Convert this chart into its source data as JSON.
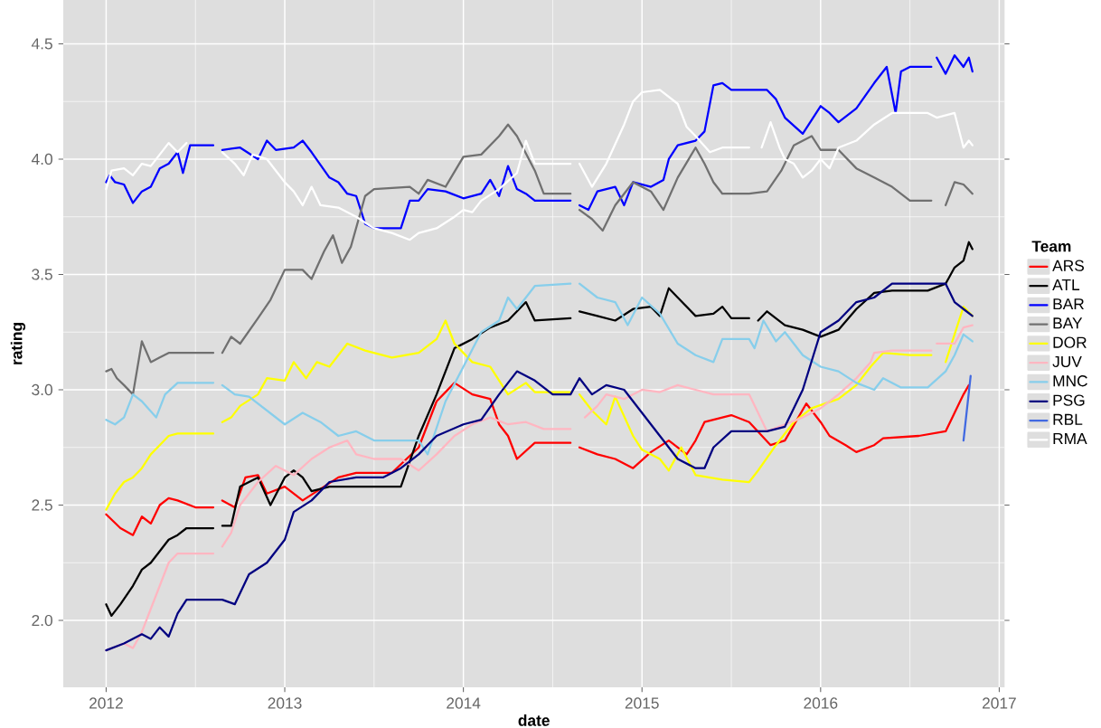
{
  "chart_data": {
    "type": "line",
    "xlabel": "date",
    "ylabel": "rating",
    "legend_title": "Team",
    "legend": "right",
    "grid": true,
    "line_style": "solid",
    "xlim": [
      2011.76,
      2017.03
    ],
    "ylim": [
      1.71,
      4.69
    ],
    "xticks": [
      2012,
      2013,
      2014,
      2015,
      2016,
      2017
    ],
    "yticks": [
      {
        "value": 2,
        "label": "2.0"
      },
      {
        "value": 2.5,
        "label": "2.5"
      },
      {
        "value": 3,
        "label": "3.0"
      },
      {
        "value": 3.5,
        "label": "3.5"
      },
      {
        "value": 4,
        "label": "4.0"
      },
      {
        "value": 4.5,
        "label": "4.5"
      }
    ],
    "series": [
      {
        "name": "ARS",
        "color": "#ff0000",
        "x": [
          2012.0,
          2012.08,
          2012.15,
          2012.2,
          2012.25,
          2012.3,
          2012.35,
          2012.4,
          2012.5,
          2012.6,
          2012.62,
          2012.65,
          2012.72,
          2012.78,
          2012.85,
          2012.9,
          2013.0,
          2013.1,
          2013.2,
          2013.3,
          2013.4,
          2013.6,
          2013.75,
          2013.85,
          2013.95,
          2014.05,
          2014.15,
          2014.2,
          2014.25,
          2014.3,
          2014.4,
          2014.6,
          2014.62,
          2014.65,
          2014.75,
          2014.85,
          2014.95,
          2015.05,
          2015.15,
          2015.25,
          2015.3,
          2015.35,
          2015.45,
          2015.5,
          2015.6,
          2015.72,
          2015.8,
          2015.92,
          2016.0,
          2016.05,
          2016.14,
          2016.2,
          2016.3,
          2016.35,
          2016.55,
          2016.7,
          2016.75,
          2016.8,
          2016.83
        ],
        "values": [
          2.46,
          2.4,
          2.37,
          2.45,
          2.42,
          2.5,
          2.53,
          2.52,
          2.49,
          2.49,
          null,
          2.52,
          2.49,
          2.62,
          2.63,
          2.55,
          2.58,
          2.52,
          2.57,
          2.62,
          2.64,
          2.64,
          2.75,
          2.95,
          3.03,
          2.98,
          2.96,
          2.85,
          2.8,
          2.7,
          2.77,
          2.77,
          null,
          2.75,
          2.72,
          2.7,
          2.66,
          2.73,
          2.78,
          2.72,
          2.78,
          2.86,
          2.88,
          2.89,
          2.86,
          2.76,
          2.78,
          2.94,
          2.86,
          2.8,
          2.76,
          2.73,
          2.76,
          2.79,
          2.8,
          2.82,
          2.9,
          2.98,
          3.02
        ]
      },
      {
        "name": "ATL",
        "color": "#000000",
        "x": [
          2012.0,
          2012.03,
          2012.08,
          2012.15,
          2012.2,
          2012.25,
          2012.3,
          2012.35,
          2012.4,
          2012.45,
          2012.6,
          2012.62,
          2012.65,
          2012.7,
          2012.75,
          2012.85,
          2012.92,
          2013.0,
          2013.05,
          2013.1,
          2013.15,
          2013.25,
          2013.5,
          2013.65,
          2013.75,
          2013.85,
          2013.95,
          2014.05,
          2014.15,
          2014.25,
          2014.35,
          2014.4,
          2014.6,
          2014.62,
          2014.65,
          2014.75,
          2014.85,
          2014.95,
          2015.05,
          2015.1,
          2015.15,
          2015.2,
          2015.3,
          2015.4,
          2015.45,
          2015.5,
          2015.6,
          2015.62,
          2015.65,
          2015.7,
          2015.8,
          2015.9,
          2016.0,
          2016.1,
          2016.2,
          2016.3,
          2016.4,
          2016.6,
          2016.7,
          2016.75,
          2016.8,
          2016.83,
          2016.85
        ],
        "values": [
          2.07,
          2.02,
          2.07,
          2.15,
          2.22,
          2.25,
          2.3,
          2.35,
          2.37,
          2.4,
          2.4,
          null,
          2.41,
          2.41,
          2.58,
          2.62,
          2.5,
          2.62,
          2.65,
          2.62,
          2.56,
          2.58,
          2.58,
          2.58,
          2.8,
          2.98,
          3.18,
          3.22,
          3.27,
          3.3,
          3.38,
          3.3,
          3.31,
          null,
          3.34,
          3.32,
          3.3,
          3.35,
          3.36,
          3.32,
          3.44,
          3.4,
          3.32,
          3.33,
          3.36,
          3.31,
          3.31,
          null,
          3.3,
          3.34,
          3.28,
          3.26,
          3.23,
          3.26,
          3.35,
          3.42,
          3.43,
          3.43,
          3.46,
          3.53,
          3.56,
          3.64,
          3.61
        ]
      },
      {
        "name": "BAR",
        "color": "#0000ff",
        "x": [
          2012.0,
          2012.02,
          2012.05,
          2012.1,
          2012.15,
          2012.2,
          2012.25,
          2012.3,
          2012.35,
          2012.4,
          2012.43,
          2012.47,
          2012.6,
          2012.62,
          2012.65,
          2012.75,
          2012.85,
          2012.9,
          2012.95,
          2013.05,
          2013.1,
          2013.15,
          2013.25,
          2013.3,
          2013.35,
          2013.4,
          2013.45,
          2013.5,
          2013.65,
          2013.7,
          2013.75,
          2013.8,
          2013.9,
          2014.0,
          2014.1,
          2014.15,
          2014.2,
          2014.25,
          2014.3,
          2014.35,
          2014.4,
          2014.6,
          2014.62,
          2014.65,
          2014.7,
          2014.75,
          2014.85,
          2014.9,
          2014.95,
          2015.05,
          2015.12,
          2015.15,
          2015.2,
          2015.3,
          2015.35,
          2015.4,
          2015.45,
          2015.5,
          2015.7,
          2015.75,
          2015.8,
          2015.9,
          2016.0,
          2016.05,
          2016.1,
          2016.2,
          2016.3,
          2016.37,
          2016.42,
          2016.45,
          2016.5,
          2016.62,
          2016.63,
          2016.65,
          2016.7,
          2016.75,
          2016.8,
          2016.83,
          2016.85
        ],
        "values": [
          3.9,
          3.93,
          3.9,
          3.89,
          3.81,
          3.86,
          3.88,
          3.96,
          3.98,
          4.03,
          3.94,
          4.06,
          4.06,
          null,
          4.04,
          4.05,
          4.0,
          4.08,
          4.04,
          4.05,
          4.08,
          4.03,
          3.92,
          3.9,
          3.85,
          3.84,
          3.72,
          3.7,
          3.7,
          3.82,
          3.82,
          3.87,
          3.86,
          3.83,
          3.85,
          3.91,
          3.84,
          3.97,
          3.87,
          3.85,
          3.82,
          3.82,
          null,
          3.8,
          3.78,
          3.86,
          3.88,
          3.8,
          3.9,
          3.88,
          3.91,
          4.0,
          4.06,
          4.08,
          4.12,
          4.32,
          4.33,
          4.3,
          4.3,
          4.26,
          4.18,
          4.11,
          4.23,
          4.2,
          4.16,
          4.22,
          4.33,
          4.4,
          4.2,
          4.38,
          4.4,
          4.4,
          null,
          4.44,
          4.37,
          4.45,
          4.4,
          4.44,
          4.38
        ]
      },
      {
        "name": "BAY",
        "color": "#707070",
        "x": [
          2012.0,
          2012.03,
          2012.06,
          2012.1,
          2012.15,
          2012.2,
          2012.25,
          2012.3,
          2012.35,
          2012.6,
          2012.62,
          2012.65,
          2012.7,
          2012.75,
          2012.85,
          2012.92,
          2013.0,
          2013.1,
          2013.15,
          2013.22,
          2013.27,
          2013.32,
          2013.37,
          2013.45,
          2013.5,
          2013.7,
          2013.75,
          2013.8,
          2013.9,
          2014.0,
          2014.1,
          2014.2,
          2014.25,
          2014.3,
          2014.4,
          2014.45,
          2014.6,
          2014.62,
          2014.65,
          2014.72,
          2014.78,
          2014.85,
          2014.95,
          2015.05,
          2015.12,
          2015.2,
          2015.3,
          2015.35,
          2015.4,
          2015.45,
          2015.6,
          2015.7,
          2015.78,
          2015.85,
          2015.95,
          2016.0,
          2016.1,
          2016.2,
          2016.3,
          2016.4,
          2016.5,
          2016.62,
          2016.66,
          2016.7,
          2016.75,
          2016.8,
          2016.85
        ],
        "values": [
          3.08,
          3.09,
          3.05,
          3.02,
          2.98,
          3.21,
          3.12,
          3.14,
          3.16,
          3.16,
          null,
          3.16,
          3.23,
          3.2,
          3.31,
          3.39,
          3.52,
          3.52,
          3.48,
          3.6,
          3.67,
          3.55,
          3.62,
          3.84,
          3.87,
          3.88,
          3.85,
          3.91,
          3.88,
          4.01,
          4.02,
          4.1,
          4.15,
          4.1,
          3.95,
          3.85,
          3.85,
          null,
          3.78,
          3.74,
          3.69,
          3.8,
          3.9,
          3.86,
          3.78,
          3.92,
          4.05,
          3.98,
          3.9,
          3.85,
          3.85,
          3.86,
          3.95,
          4.06,
          4.1,
          4.04,
          4.04,
          3.96,
          3.92,
          3.88,
          3.82,
          3.82,
          null,
          3.8,
          3.9,
          3.89,
          3.85
        ]
      },
      {
        "name": "DOR",
        "color": "#ffff00",
        "x": [
          2012.0,
          2012.05,
          2012.1,
          2012.15,
          2012.2,
          2012.25,
          2012.3,
          2012.35,
          2012.4,
          2012.6,
          2012.62,
          2012.65,
          2012.7,
          2012.75,
          2012.85,
          2012.9,
          2013.0,
          2013.05,
          2013.12,
          2013.18,
          2013.25,
          2013.35,
          2013.45,
          2013.6,
          2013.75,
          2013.85,
          2013.9,
          2013.95,
          2014.05,
          2014.15,
          2014.25,
          2014.35,
          2014.4,
          2014.6,
          2014.62,
          2014.65,
          2014.72,
          2014.8,
          2014.85,
          2014.95,
          2015.0,
          2015.1,
          2015.15,
          2015.22,
          2015.3,
          2015.45,
          2015.6,
          2015.65,
          2015.75,
          2015.85,
          2015.95,
          2016.1,
          2016.2,
          2016.28,
          2016.35,
          2016.5,
          2016.62,
          2016.66,
          2016.7,
          2016.75,
          2016.8,
          2016.85
        ],
        "values": [
          2.48,
          2.55,
          2.6,
          2.62,
          2.66,
          2.72,
          2.76,
          2.8,
          2.81,
          2.81,
          null,
          2.86,
          2.88,
          2.93,
          2.98,
          3.05,
          3.04,
          3.12,
          3.05,
          3.12,
          3.1,
          3.2,
          3.17,
          3.14,
          3.16,
          3.22,
          3.3,
          3.2,
          3.12,
          3.1,
          2.98,
          3.03,
          2.99,
          2.99,
          null,
          2.98,
          2.91,
          2.85,
          2.97,
          2.8,
          2.74,
          2.7,
          2.65,
          2.75,
          2.63,
          2.61,
          2.6,
          2.65,
          2.76,
          2.86,
          2.92,
          2.96,
          3.02,
          3.1,
          3.16,
          3.15,
          3.15,
          null,
          3.12,
          3.24,
          3.36,
          3.32
        ]
      },
      {
        "name": "JUV",
        "color": "#ffb6c1",
        "x": [
          2012.0,
          2012.1,
          2012.15,
          2012.2,
          2012.25,
          2012.3,
          2012.35,
          2012.4,
          2012.6,
          2012.62,
          2012.65,
          2012.7,
          2012.75,
          2012.85,
          2012.95,
          2013.05,
          2013.15,
          2013.25,
          2013.35,
          2013.4,
          2013.5,
          2013.65,
          2013.75,
          2013.85,
          2013.95,
          2014.05,
          2014.15,
          2014.25,
          2014.35,
          2014.45,
          2014.6,
          2014.64,
          2014.68,
          2014.75,
          2014.8,
          2014.9,
          2015.0,
          2015.1,
          2015.2,
          2015.3,
          2015.4,
          2015.6,
          2015.65,
          2015.7,
          2015.8,
          2015.9,
          2016.0,
          2016.1,
          2016.2,
          2016.28,
          2016.3,
          2016.4,
          2016.62,
          2016.63,
          2016.65,
          2016.75,
          2016.8,
          2016.85
        ],
        "values": [
          1.87,
          1.9,
          1.88,
          1.95,
          2.05,
          2.15,
          2.25,
          2.29,
          2.29,
          null,
          2.32,
          2.38,
          2.5,
          2.6,
          2.67,
          2.63,
          2.7,
          2.75,
          2.78,
          2.72,
          2.7,
          2.7,
          2.65,
          2.72,
          2.8,
          2.85,
          2.88,
          2.85,
          2.86,
          2.83,
          2.83,
          null,
          2.88,
          2.93,
          2.98,
          2.96,
          3.0,
          2.99,
          3.02,
          3.0,
          2.98,
          2.98,
          2.9,
          2.82,
          2.85,
          2.88,
          2.92,
          2.98,
          3.05,
          3.12,
          3.16,
          3.17,
          3.17,
          null,
          3.2,
          3.2,
          3.27,
          3.28
        ]
      },
      {
        "name": "MNC",
        "color": "#87ceeb",
        "x": [
          2012.0,
          2012.05,
          2012.1,
          2012.15,
          2012.2,
          2012.28,
          2012.33,
          2012.4,
          2012.6,
          2012.62,
          2012.65,
          2012.72,
          2012.8,
          2012.9,
          2013.0,
          2013.1,
          2013.2,
          2013.3,
          2013.4,
          2013.5,
          2013.75,
          2013.8,
          2013.9,
          2014.0,
          2014.1,
          2014.2,
          2014.25,
          2014.3,
          2014.4,
          2014.6,
          2014.62,
          2014.65,
          2014.75,
          2014.85,
          2014.92,
          2015.0,
          2015.1,
          2015.2,
          2015.3,
          2015.4,
          2015.45,
          2015.6,
          2015.63,
          2015.68,
          2015.75,
          2015.8,
          2015.9,
          2016.0,
          2016.1,
          2016.2,
          2016.3,
          2016.35,
          2016.45,
          2016.6,
          2016.7,
          2016.75,
          2016.8,
          2016.85
        ],
        "values": [
          2.87,
          2.85,
          2.88,
          2.98,
          2.95,
          2.88,
          2.98,
          3.03,
          3.03,
          null,
          3.02,
          2.98,
          2.97,
          2.91,
          2.85,
          2.9,
          2.86,
          2.8,
          2.82,
          2.78,
          2.78,
          2.72,
          2.95,
          3.1,
          3.25,
          3.3,
          3.4,
          3.35,
          3.45,
          3.46,
          null,
          3.46,
          3.4,
          3.38,
          3.28,
          3.4,
          3.33,
          3.2,
          3.15,
          3.12,
          3.22,
          3.22,
          3.18,
          3.3,
          3.21,
          3.25,
          3.15,
          3.1,
          3.08,
          3.03,
          3.0,
          3.05,
          3.01,
          3.01,
          3.08,
          3.15,
          3.24,
          3.21
        ]
      },
      {
        "name": "PSG",
        "color": "#000080",
        "x": [
          2012.0,
          2012.1,
          2012.2,
          2012.25,
          2012.3,
          2012.35,
          2012.4,
          2012.45,
          2012.65,
          2012.72,
          2012.8,
          2012.9,
          2013.0,
          2013.05,
          2013.15,
          2013.25,
          2013.4,
          2013.55,
          2013.65,
          2013.75,
          2013.85,
          2014.0,
          2014.1,
          2014.2,
          2014.3,
          2014.4,
          2014.5,
          2014.6,
          2014.65,
          2014.72,
          2014.8,
          2014.9,
          2015.0,
          2015.1,
          2015.2,
          2015.3,
          2015.35,
          2015.4,
          2015.5,
          2015.7,
          2015.8,
          2015.9,
          2016.0,
          2016.1,
          2016.2,
          2016.3,
          2016.4,
          2016.7,
          2016.75,
          2016.8,
          2016.85
        ],
        "values": [
          1.87,
          1.9,
          1.94,
          1.92,
          1.97,
          1.93,
          2.03,
          2.09,
          2.09,
          2.07,
          2.2,
          2.25,
          2.35,
          2.47,
          2.52,
          2.6,
          2.62,
          2.62,
          2.66,
          2.72,
          2.8,
          2.85,
          2.87,
          2.98,
          3.08,
          3.04,
          2.98,
          2.98,
          3.05,
          2.98,
          3.02,
          3.0,
          2.9,
          2.8,
          2.7,
          2.66,
          2.66,
          2.75,
          2.82,
          2.82,
          2.84,
          3.0,
          3.25,
          3.3,
          3.38,
          3.4,
          3.46,
          3.46,
          3.38,
          3.35,
          3.32
        ]
      },
      {
        "name": "RBL",
        "color": "#4169e1",
        "x": [
          2016.8,
          2016.84
        ],
        "values": [
          2.78,
          3.06
        ]
      },
      {
        "name": "RMA",
        "color": "#ffffff",
        "x": [
          2012.0,
          2012.03,
          2012.1,
          2012.15,
          2012.2,
          2012.25,
          2012.3,
          2012.35,
          2012.4,
          2012.45,
          2012.62,
          2012.65,
          2012.72,
          2012.77,
          2012.82,
          2012.9,
          2013.0,
          2013.05,
          2013.1,
          2013.15,
          2013.2,
          2013.3,
          2013.4,
          2013.5,
          2013.6,
          2013.7,
          2013.75,
          2013.85,
          2013.95,
          2014.0,
          2014.05,
          2014.1,
          2014.2,
          2014.3,
          2014.35,
          2014.4,
          2014.6,
          2014.62,
          2014.65,
          2014.72,
          2014.8,
          2014.9,
          2014.95,
          2015.0,
          2015.1,
          2015.2,
          2015.25,
          2015.3,
          2015.38,
          2015.45,
          2015.6,
          2015.63,
          2015.67,
          2015.72,
          2015.77,
          2015.8,
          2015.85,
          2015.9,
          2015.95,
          2016.0,
          2016.05,
          2016.1,
          2016.2,
          2016.3,
          2016.4,
          2016.5,
          2016.6,
          2016.65,
          2016.75,
          2016.8,
          2016.83,
          2016.85
        ],
        "values": [
          3.87,
          3.95,
          3.96,
          3.93,
          3.98,
          3.97,
          4.02,
          4.07,
          4.03,
          4.07,
          null,
          4.03,
          3.98,
          3.93,
          4.02,
          4.0,
          3.9,
          3.86,
          3.8,
          3.88,
          3.8,
          3.79,
          3.75,
          3.7,
          3.68,
          3.65,
          3.68,
          3.7,
          3.75,
          3.78,
          3.77,
          3.82,
          3.87,
          3.94,
          4.08,
          3.98,
          3.98,
          null,
          3.98,
          3.88,
          3.98,
          4.15,
          4.25,
          4.29,
          4.3,
          4.24,
          4.14,
          4.1,
          4.03,
          4.05,
          4.05,
          null,
          4.05,
          4.16,
          4.05,
          4.0,
          3.98,
          3.92,
          3.95,
          4.0,
          3.96,
          4.05,
          4.08,
          4.15,
          4.2,
          4.2,
          4.2,
          4.18,
          4.2,
          4.05,
          4.08,
          4.06
        ]
      }
    ]
  }
}
